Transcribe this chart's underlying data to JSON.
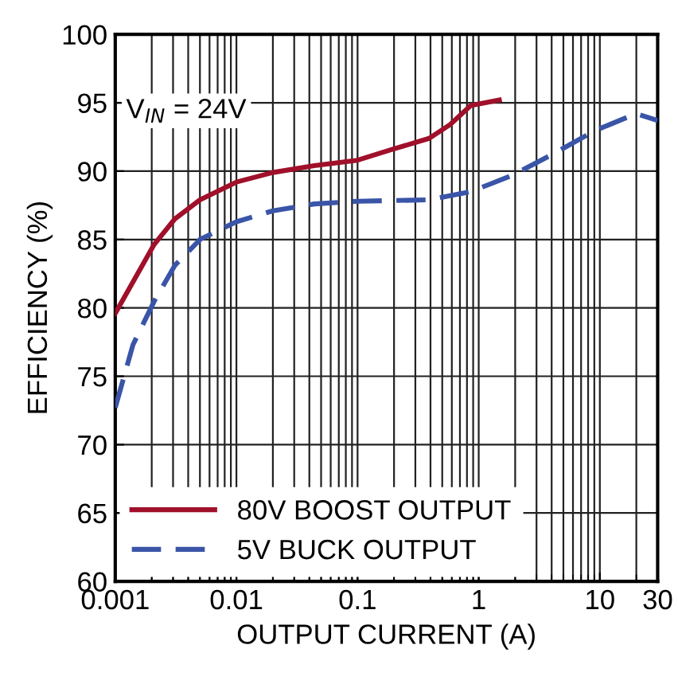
{
  "chart_data": {
    "type": "line",
    "xlabel": "OUTPUT CURRENT (A)",
    "ylabel": "EFFICIENCY (%)",
    "annotations": [
      "V$_{IN}$ = 24V"
    ],
    "log": "x",
    "xlim": [
      0.001,
      30
    ],
    "xticks": [
      0.001,
      0.01,
      0.1,
      1,
      10,
      30
    ],
    "ylim": [
      60,
      100
    ],
    "yticks": [
      60,
      65,
      70,
      75,
      80,
      85,
      90,
      95,
      100
    ],
    "grid": true,
    "legend": "bottom left",
    "series": [
      {
        "name": "80V BOOST OUTPUT",
        "color": "#a0102a",
        "line_style": "solid",
        "x": [
          0.001,
          0.00208,
          0.0031,
          0.005,
          0.01,
          0.02,
          0.044,
          0.1,
          0.195,
          0.39,
          0.58,
          0.86,
          1.48
        ],
        "values": [
          79.6,
          84.6,
          86.5,
          87.9,
          89.2,
          89.9,
          90.4,
          90.8,
          91.6,
          92.4,
          93.4,
          94.8,
          95.2
        ]
      },
      {
        "name": "5V BUCK OUTPUT",
        "color": "#3a55a8",
        "line_style": "dashed",
        "x": [
          0.001,
          0.0014,
          0.0021,
          0.0031,
          0.005,
          0.01,
          0.02,
          0.044,
          0.1,
          0.39,
          0.86,
          1.9,
          4.2,
          9.3,
          19.9,
          30
        ],
        "values": [
          72.7,
          77.3,
          80.5,
          83.1,
          85.0,
          86.3,
          87.1,
          87.6,
          87.8,
          87.9,
          88.5,
          89.7,
          91.3,
          93.0,
          94.2,
          93.7
        ]
      }
    ]
  }
}
